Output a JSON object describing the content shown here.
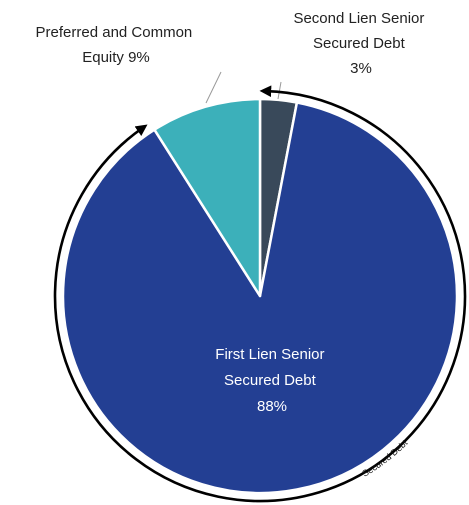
{
  "chart_data": {
    "type": "pie",
    "title": "",
    "slices": [
      {
        "label_lines": [
          "Second Lien Senior",
          "Secured Debt",
          "3%"
        ],
        "value": 3,
        "color": "#39495a"
      },
      {
        "label_lines": [
          "First Lien Senior",
          "Secured Debt",
          "88%"
        ],
        "value": 88,
        "color": "#233f93"
      },
      {
        "label_lines": [
          "Preferred and Common",
          "Equity 9%"
        ],
        "value": 9,
        "color": "#3cb0ba"
      }
    ],
    "start_angle_deg": 0,
    "direction": "clockwise",
    "label_colors": {
      "outside": "#222222",
      "inside": "#ffffff"
    },
    "bracket": {
      "label": "Secured Debt",
      "spans_slices": [
        "Second Lien Senior Secured Debt",
        "First Lien Senior Secured Debt"
      ]
    }
  }
}
